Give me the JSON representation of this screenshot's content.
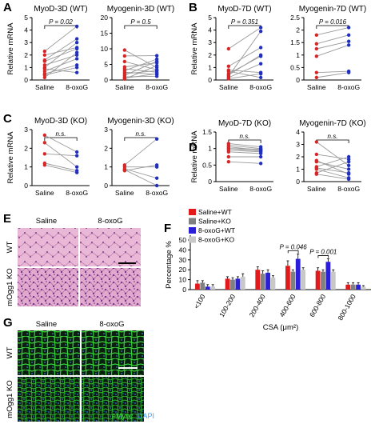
{
  "panel_letters": [
    "A",
    "B",
    "C",
    "D",
    "E",
    "F",
    "G"
  ],
  "colors": {
    "saline": "#d62728",
    "oxog": "#1f2fbf",
    "line": "#9a9a9a",
    "bar_saline_wt": "#e31a1c",
    "bar_saline_ko": "#808080",
    "bar_oxog_wt": "#2a1fd6",
    "bar_oxog_ko": "#c8c8c8"
  },
  "chart_data": [
    {
      "type": "scatter",
      "panel": "A",
      "title": "MyoD-3D (WT)",
      "ylabel": "Relative mRNA",
      "categories": [
        "Saline",
        "8-oxoG"
      ],
      "ylim": [
        0,
        5
      ],
      "yticks": [
        0,
        1,
        2,
        3,
        4,
        5
      ],
      "annotation": "P = 0.02",
      "series": [
        {
          "name": "Saline",
          "values": [
            2.3,
            1.5,
            1.2,
            1.6,
            0.7,
            0.5,
            2.0,
            0.9,
            0.4,
            1.0,
            0.2
          ]
        },
        {
          "name": "8-oxoG",
          "values": [
            4.3,
            2.5,
            2.0,
            3.3,
            1.7,
            1.2,
            2.6,
            0.6,
            1.0,
            3.0,
            2.2
          ]
        }
      ]
    },
    {
      "type": "scatter",
      "panel": "A",
      "title": "Myogenin-3D (WT)",
      "ylabel": "",
      "categories": [
        "Saline",
        "8-oxoG"
      ],
      "ylim": [
        0,
        20
      ],
      "yticks": [
        0,
        5,
        10,
        15,
        20
      ],
      "annotation": "P = 0.5",
      "series": [
        {
          "name": "Saline",
          "values": [
            9.6,
            7.7,
            5.9,
            4.2,
            3.6,
            3.0,
            2.5,
            2.0,
            1.5,
            1.0,
            0.6,
            0.3
          ]
        },
        {
          "name": "8-oxoG",
          "values": [
            4.0,
            7.8,
            3.3,
            5.5,
            2.5,
            6.7,
            1.8,
            3.0,
            6.0,
            1.2,
            2.0,
            4.6
          ]
        }
      ]
    },
    {
      "type": "scatter",
      "panel": "B",
      "title": "MyoD-7D (WT)",
      "ylabel": "Relative mRNA",
      "categories": [
        "Saline",
        "8-oxoG"
      ],
      "ylim": [
        0,
        5
      ],
      "yticks": [
        0,
        1,
        2,
        3,
        4,
        5
      ],
      "annotation": "P = 0.351",
      "series": [
        {
          "name": "Saline",
          "values": [
            2.5,
            1.1,
            0.8,
            0.5,
            0.3,
            0.2,
            0.1,
            0.7,
            0.4
          ]
        },
        {
          "name": "8-oxoG",
          "values": [
            4.2,
            2.6,
            0.6,
            1.9,
            3.9,
            1.3,
            0.5,
            0.2,
            2.0
          ]
        }
      ]
    },
    {
      "type": "scatter",
      "panel": "B",
      "title": "Myogenin-7D (WT)",
      "ylabel": "",
      "categories": [
        "Saline",
        "8-oxoG"
      ],
      "ylim": [
        0,
        2.5
      ],
      "yticks": [
        0,
        0.5,
        1,
        1.5,
        2,
        2.5
      ],
      "annotation": "P = 0.016",
      "series": [
        {
          "name": "Saline",
          "values": [
            1.8,
            1.45,
            1.25,
            0.95,
            0.3,
            0.1
          ]
        },
        {
          "name": "8-oxoG",
          "values": [
            2.1,
            1.8,
            1.55,
            1.4,
            0.35,
            0.3
          ]
        }
      ]
    },
    {
      "type": "scatter",
      "panel": "C",
      "title": "MyoD-3D (KO)",
      "ylabel": "Relative mRNA",
      "categories": [
        "Saline",
        "8-oxoG"
      ],
      "ylim": [
        0,
        3
      ],
      "yticks": [
        0,
        1,
        2,
        3
      ],
      "annotation": "n.s.",
      "series": [
        {
          "name": "Saline",
          "values": [
            2.7,
            2.3,
            1.7,
            1.2,
            1.1
          ]
        },
        {
          "name": "8-oxoG",
          "values": [
            1.8,
            1.0,
            1.6,
            0.8,
            0.7
          ]
        }
      ]
    },
    {
      "type": "scatter",
      "panel": "C",
      "title": "Myogenin-3D (KO)",
      "ylabel": "",
      "categories": [
        "Saline",
        "8-oxoG"
      ],
      "ylim": [
        0,
        3
      ],
      "yticks": [
        0,
        1,
        2,
        3
      ],
      "annotation": "n.s.",
      "series": [
        {
          "name": "Saline",
          "values": [
            1.1,
            1.0,
            0.9,
            0.85,
            0.8
          ]
        },
        {
          "name": "8-oxoG",
          "values": [
            2.5,
            1.0,
            0.4,
            0.0,
            1.1
          ]
        }
      ]
    },
    {
      "type": "scatter",
      "panel": "D",
      "title": "MyoD-7D (KO)",
      "ylabel": "Relative mRNA",
      "categories": [
        "Saline",
        "8-oxoG"
      ],
      "ylim": [
        0,
        1.5
      ],
      "yticks": [
        0,
        0.5,
        1,
        1.5
      ],
      "annotation": "n.s.",
      "series": [
        {
          "name": "Saline",
          "values": [
            1.15,
            1.1,
            1.05,
            1.0,
            0.95,
            0.9,
            0.75,
            0.6,
            1.0
          ]
        },
        {
          "name": "8-oxoG",
          "values": [
            1.05,
            1.0,
            0.95,
            0.92,
            0.9,
            0.85,
            0.75,
            0.55,
            0.98
          ]
        }
      ]
    },
    {
      "type": "scatter",
      "panel": "D",
      "title": "Myogenin-7D (KO)",
      "ylabel": "",
      "categories": [
        "Saline",
        "8-oxoG"
      ],
      "ylim": [
        0,
        4
      ],
      "yticks": [
        0,
        1,
        2,
        3,
        4
      ],
      "annotation": "n.s.",
      "series": [
        {
          "name": "Saline",
          "values": [
            3.2,
            2.2,
            1.7,
            1.6,
            1.2,
            1.1,
            1.0,
            0.7,
            0.6
          ]
        },
        {
          "name": "8-oxoG",
          "values": [
            1.3,
            1.8,
            0.6,
            1.0,
            2.0,
            0.7,
            0.3,
            1.6,
            0.2
          ]
        }
      ]
    },
    {
      "type": "bar",
      "panel": "F",
      "xlabel": "CSA (μm²)",
      "ylabel": "Percentage %",
      "ylim": [
        0,
        50
      ],
      "yticks": [
        0,
        10,
        20,
        30,
        40,
        50
      ],
      "categories": [
        "<100",
        "100-200",
        "200-400",
        "400-600",
        "600-800",
        "800-1000"
      ],
      "legend_position": "top-left",
      "series": [
        {
          "name": "Saline+WT",
          "values": [
            6,
            11,
            20,
            24,
            19,
            5
          ],
          "errors": [
            3,
            2,
            3,
            5,
            3,
            2
          ]
        },
        {
          "name": "Saline+KO",
          "values": [
            7,
            10,
            16,
            18,
            18,
            5
          ],
          "errors": [
            2,
            2,
            3,
            2,
            2,
            2
          ]
        },
        {
          "name": "8-oxoG+WT",
          "values": [
            3,
            11,
            17,
            31,
            28,
            5
          ],
          "errors": [
            2,
            2,
            3,
            5,
            3,
            2
          ]
        },
        {
          "name": "8-oxoG+KO",
          "values": [
            3,
            13,
            12,
            20,
            18,
            3
          ],
          "errors": [
            2,
            3,
            2,
            2,
            2,
            1
          ]
        }
      ],
      "annotations": [
        {
          "between": [
            "Saline+WT",
            "8-oxoG+WT"
          ],
          "category": "400-600",
          "text": "P = 0.046"
        },
        {
          "between": [
            "Saline+WT",
            "8-oxoG+WT"
          ],
          "category": "600-800",
          "text": "P = 0.001"
        }
      ]
    }
  ],
  "panel_e": {
    "col_labels": [
      "Saline",
      "8-oxoG"
    ],
    "row_labels": [
      "WT",
      "mOgg1 KO"
    ]
  },
  "panel_g": {
    "col_labels": [
      "Saline",
      "8-oxoG"
    ],
    "row_labels": [
      "WT",
      "mOgg1 KO"
    ],
    "stain_label_1": "eMync",
    "stain_label_2": "DAPI",
    "stain_color_1": "#39e639",
    "stain_color_2": "#3aa0ff"
  }
}
